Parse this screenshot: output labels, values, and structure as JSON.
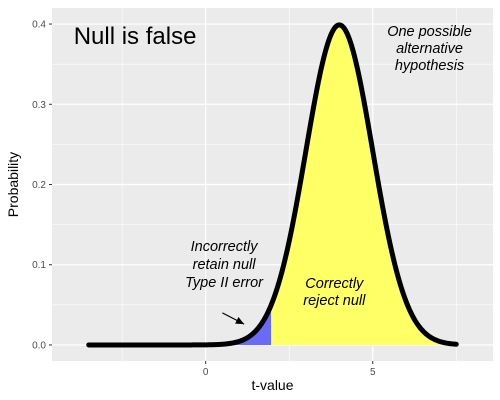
{
  "chart_data": {
    "type": "area",
    "xlabel": "t-value",
    "ylabel": "Probability",
    "xlim": [
      -4.6,
      8.6
    ],
    "ylim": [
      -0.02,
      0.42
    ],
    "x_ticks": [
      0,
      5
    ],
    "y_ticks": [
      0.0,
      0.1,
      0.2,
      0.3,
      0.4
    ],
    "y_tick_labels": [
      "0.0",
      "0.1",
      "0.2",
      "0.3",
      "0.4"
    ],
    "grid": true,
    "curve": {
      "distribution": "normal",
      "mean": 4,
      "sd": 1,
      "x_from": -3.5,
      "x_to": 7.5,
      "color": "#000000"
    },
    "regions": [
      {
        "name": "Type II error",
        "x_from": 1.96,
        "x_to_edge": "left",
        "fill": "#6a6af9"
      },
      {
        "name": "Correctly reject null",
        "x_from": 1.96,
        "x_to": 7.5,
        "fill": "#ffff66"
      }
    ],
    "critical_value": 1.96,
    "annotations": {
      "corner_title": "Null is false",
      "alternative": [
        "One possible",
        "alternative",
        "hypothesis"
      ],
      "type2": [
        "Incorrectly",
        "retain null",
        "Type II error"
      ],
      "reject": [
        "Correctly",
        "reject null"
      ]
    },
    "arrow": {
      "from": [
        0.5,
        0.04
      ],
      "to": [
        1.15,
        0.026
      ]
    },
    "annotation_positions": {
      "corner_title_xy": [
        -3.95,
        0.375
      ],
      "alternative_xy": [
        6.7,
        0.385
      ],
      "type2_xy": [
        0.55,
        0.117
      ],
      "reject_xy": [
        3.85,
        0.071
      ]
    },
    "colors": {
      "panel": "#ebebeb",
      "gridline": "#ffffff"
    }
  }
}
